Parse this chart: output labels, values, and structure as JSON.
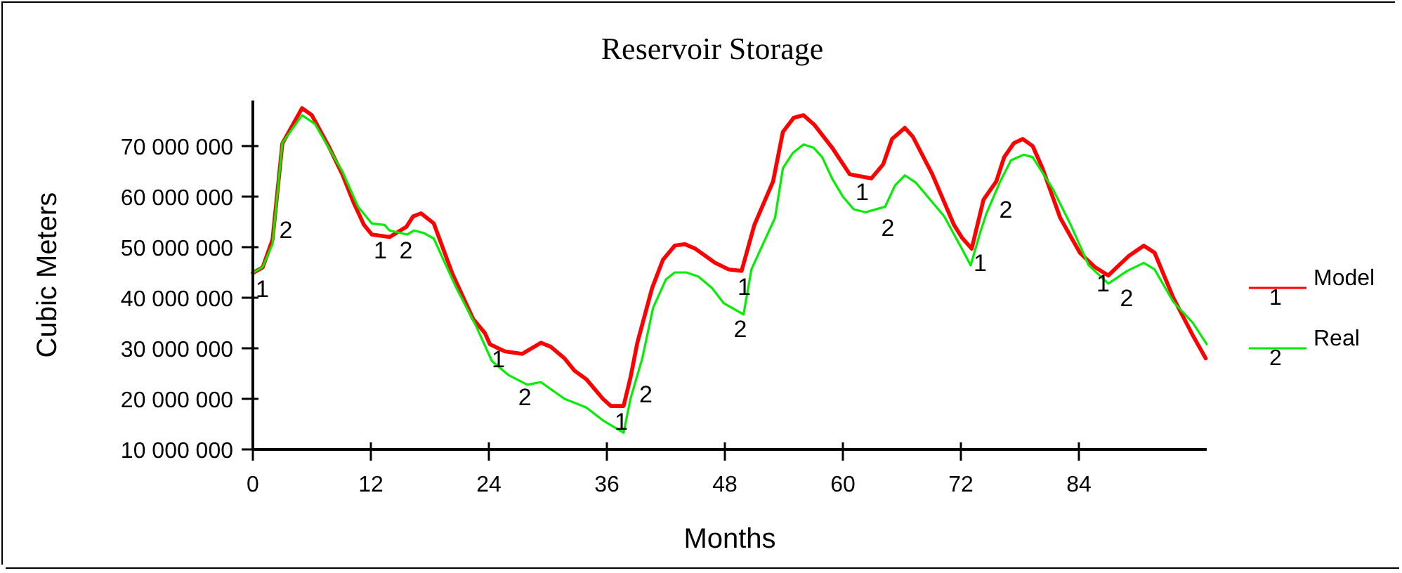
{
  "chart_data": {
    "type": "line",
    "title": "Reservoir Storage",
    "xlabel": "Months",
    "ylabel": "Cubic Meters",
    "xlim": [
      0,
      97
    ],
    "ylim": [
      10000000,
      79000000
    ],
    "xticks": [
      0,
      12,
      24,
      36,
      48,
      60,
      72,
      84
    ],
    "yticks": [
      {
        "value": 10000000,
        "label": "10 000 000"
      },
      {
        "value": 20000000,
        "label": "20 000 000"
      },
      {
        "value": 30000000,
        "label": "30 000 000"
      },
      {
        "value": 40000000,
        "label": "40 000 000"
      },
      {
        "value": 50000000,
        "label": "50 000 000"
      },
      {
        "value": 60000000,
        "label": "60 000 000"
      },
      {
        "value": 70000000,
        "label": "70 000 000"
      }
    ],
    "grid": false,
    "legend": "right",
    "marker": "none",
    "line_style": "solid",
    "series": [
      {
        "name": "Model",
        "color": "#ff0000",
        "x": [
          0,
          1,
          2,
          3,
          5,
          6,
          7.7,
          9.1,
          10.3,
          11.3,
          12.1,
          13.9,
          15.6,
          16.3,
          17.1,
          18.4,
          20.3,
          22.4,
          23.6,
          24.1,
          25.6,
          27.4,
          29.3,
          30.3,
          31.7,
          32.7,
          33.9,
          35.6,
          36.4,
          37.7,
          38.4,
          39.1,
          40.6,
          41.7,
          42.9,
          43.9,
          45,
          47,
          48.4,
          49.7,
          51,
          52.9,
          53.9,
          55,
          56,
          57.1,
          58.9,
          60.7,
          62.9,
          64.1,
          65,
          66.3,
          67.1,
          69.1,
          71.3,
          72.1,
          73.1,
          74.3,
          75.6,
          76.4,
          77.4,
          78.3,
          79.3,
          80.3,
          82.1,
          84.1,
          85.6,
          87,
          87.9,
          89.1,
          90.6,
          91.7,
          93.6,
          95.6,
          96.9
        ],
        "values": [
          44900000,
          46000000,
          51500000,
          70500000,
          77500000,
          76100000,
          70000000,
          64400000,
          58600000,
          54400000,
          52500000,
          52000000,
          54000000,
          56100000,
          56700000,
          54700000,
          44700000,
          35800000,
          33000000,
          30800000,
          29400000,
          28900000,
          31100000,
          30300000,
          28000000,
          25600000,
          23900000,
          20000000,
          18600000,
          18600000,
          24200000,
          31100000,
          41900000,
          47500000,
          50300000,
          50600000,
          49700000,
          46900000,
          45600000,
          45300000,
          54400000,
          63000000,
          72800000,
          75600000,
          76100000,
          74200000,
          69700000,
          64400000,
          63600000,
          66400000,
          71400000,
          73600000,
          71900000,
          64400000,
          54400000,
          51900000,
          49700000,
          59400000,
          63000000,
          67800000,
          70600000,
          71400000,
          70000000,
          65600000,
          55800000,
          48900000,
          46100000,
          44400000,
          46100000,
          48300000,
          50300000,
          48900000,
          40000000,
          32500000,
          28000000
        ]
      },
      {
        "name": "Real",
        "color": "#00ee00",
        "x": [
          0,
          1,
          2,
          3,
          5,
          6.3,
          9.1,
          10.7,
          12.1,
          13.4,
          13.9,
          15.7,
          16.4,
          17.4,
          18.4,
          20.7,
          22.7,
          24.3,
          26,
          27.9,
          29.3,
          30.3,
          31.7,
          33.9,
          35.7,
          37.7,
          38.4,
          39.6,
          40.7,
          42,
          42.9,
          44.1,
          45.3,
          46.7,
          47.9,
          49.9,
          50.7,
          53.1,
          53.9,
          54.9,
          56,
          57,
          57.9,
          58.9,
          60,
          61.1,
          62.3,
          64.3,
          65.3,
          66.3,
          67.4,
          70.3,
          72.1,
          73,
          73.9,
          74.6,
          76,
          77.1,
          78.4,
          79.3,
          81.3,
          83.1,
          85,
          87,
          88.9,
          90.6,
          91.7,
          93.6,
          95.6,
          97
        ],
        "values": [
          44900000,
          46100000,
          50600000,
          70600000,
          76100000,
          74400000,
          65000000,
          58000000,
          54700000,
          54400000,
          53300000,
          52500000,
          53300000,
          52800000,
          51700000,
          41900000,
          34400000,
          27500000,
          24700000,
          22800000,
          23300000,
          21900000,
          20000000,
          18300000,
          15600000,
          13300000,
          20000000,
          28000000,
          38000000,
          43600000,
          45000000,
          45000000,
          44200000,
          41900000,
          38900000,
          36700000,
          45600000,
          55800000,
          65600000,
          68600000,
          70300000,
          69700000,
          67800000,
          63600000,
          60000000,
          57500000,
          56900000,
          58000000,
          62200000,
          64200000,
          62800000,
          56100000,
          49700000,
          46400000,
          52500000,
          56700000,
          63000000,
          67200000,
          68300000,
          67800000,
          61700000,
          54700000,
          46400000,
          42800000,
          45300000,
          46900000,
          45600000,
          39200000,
          35000000,
          30800000
        ]
      }
    ],
    "annotations": [
      {
        "text": "1",
        "x": 0,
        "y": 44900000
      },
      {
        "text": "1",
        "x": 12,
        "y": 52500000
      },
      {
        "text": "1",
        "x": 24,
        "y": 31000000
      },
      {
        "text": "1",
        "x": 36.5,
        "y": 18600000
      },
      {
        "text": "1",
        "x": 49,
        "y": 45300000
      },
      {
        "text": "1",
        "x": 61,
        "y": 64000000
      },
      {
        "text": "1",
        "x": 73,
        "y": 50000000
      },
      {
        "text": "1",
        "x": 85.5,
        "y": 46000000
      },
      {
        "text": "2",
        "x": 2.4,
        "y": 56500000
      },
      {
        "text": "2",
        "x": 14.6,
        "y": 52500000
      },
      {
        "text": "2",
        "x": 26.7,
        "y": 23500000
      },
      {
        "text": "2",
        "x": 39,
        "y": 24000000
      },
      {
        "text": "2",
        "x": 48.6,
        "y": 37000000
      },
      {
        "text": "2",
        "x": 63.6,
        "y": 57000000
      },
      {
        "text": "2",
        "x": 75.6,
        "y": 60500000
      },
      {
        "text": "2",
        "x": 87.9,
        "y": 43000000
      }
    ]
  }
}
